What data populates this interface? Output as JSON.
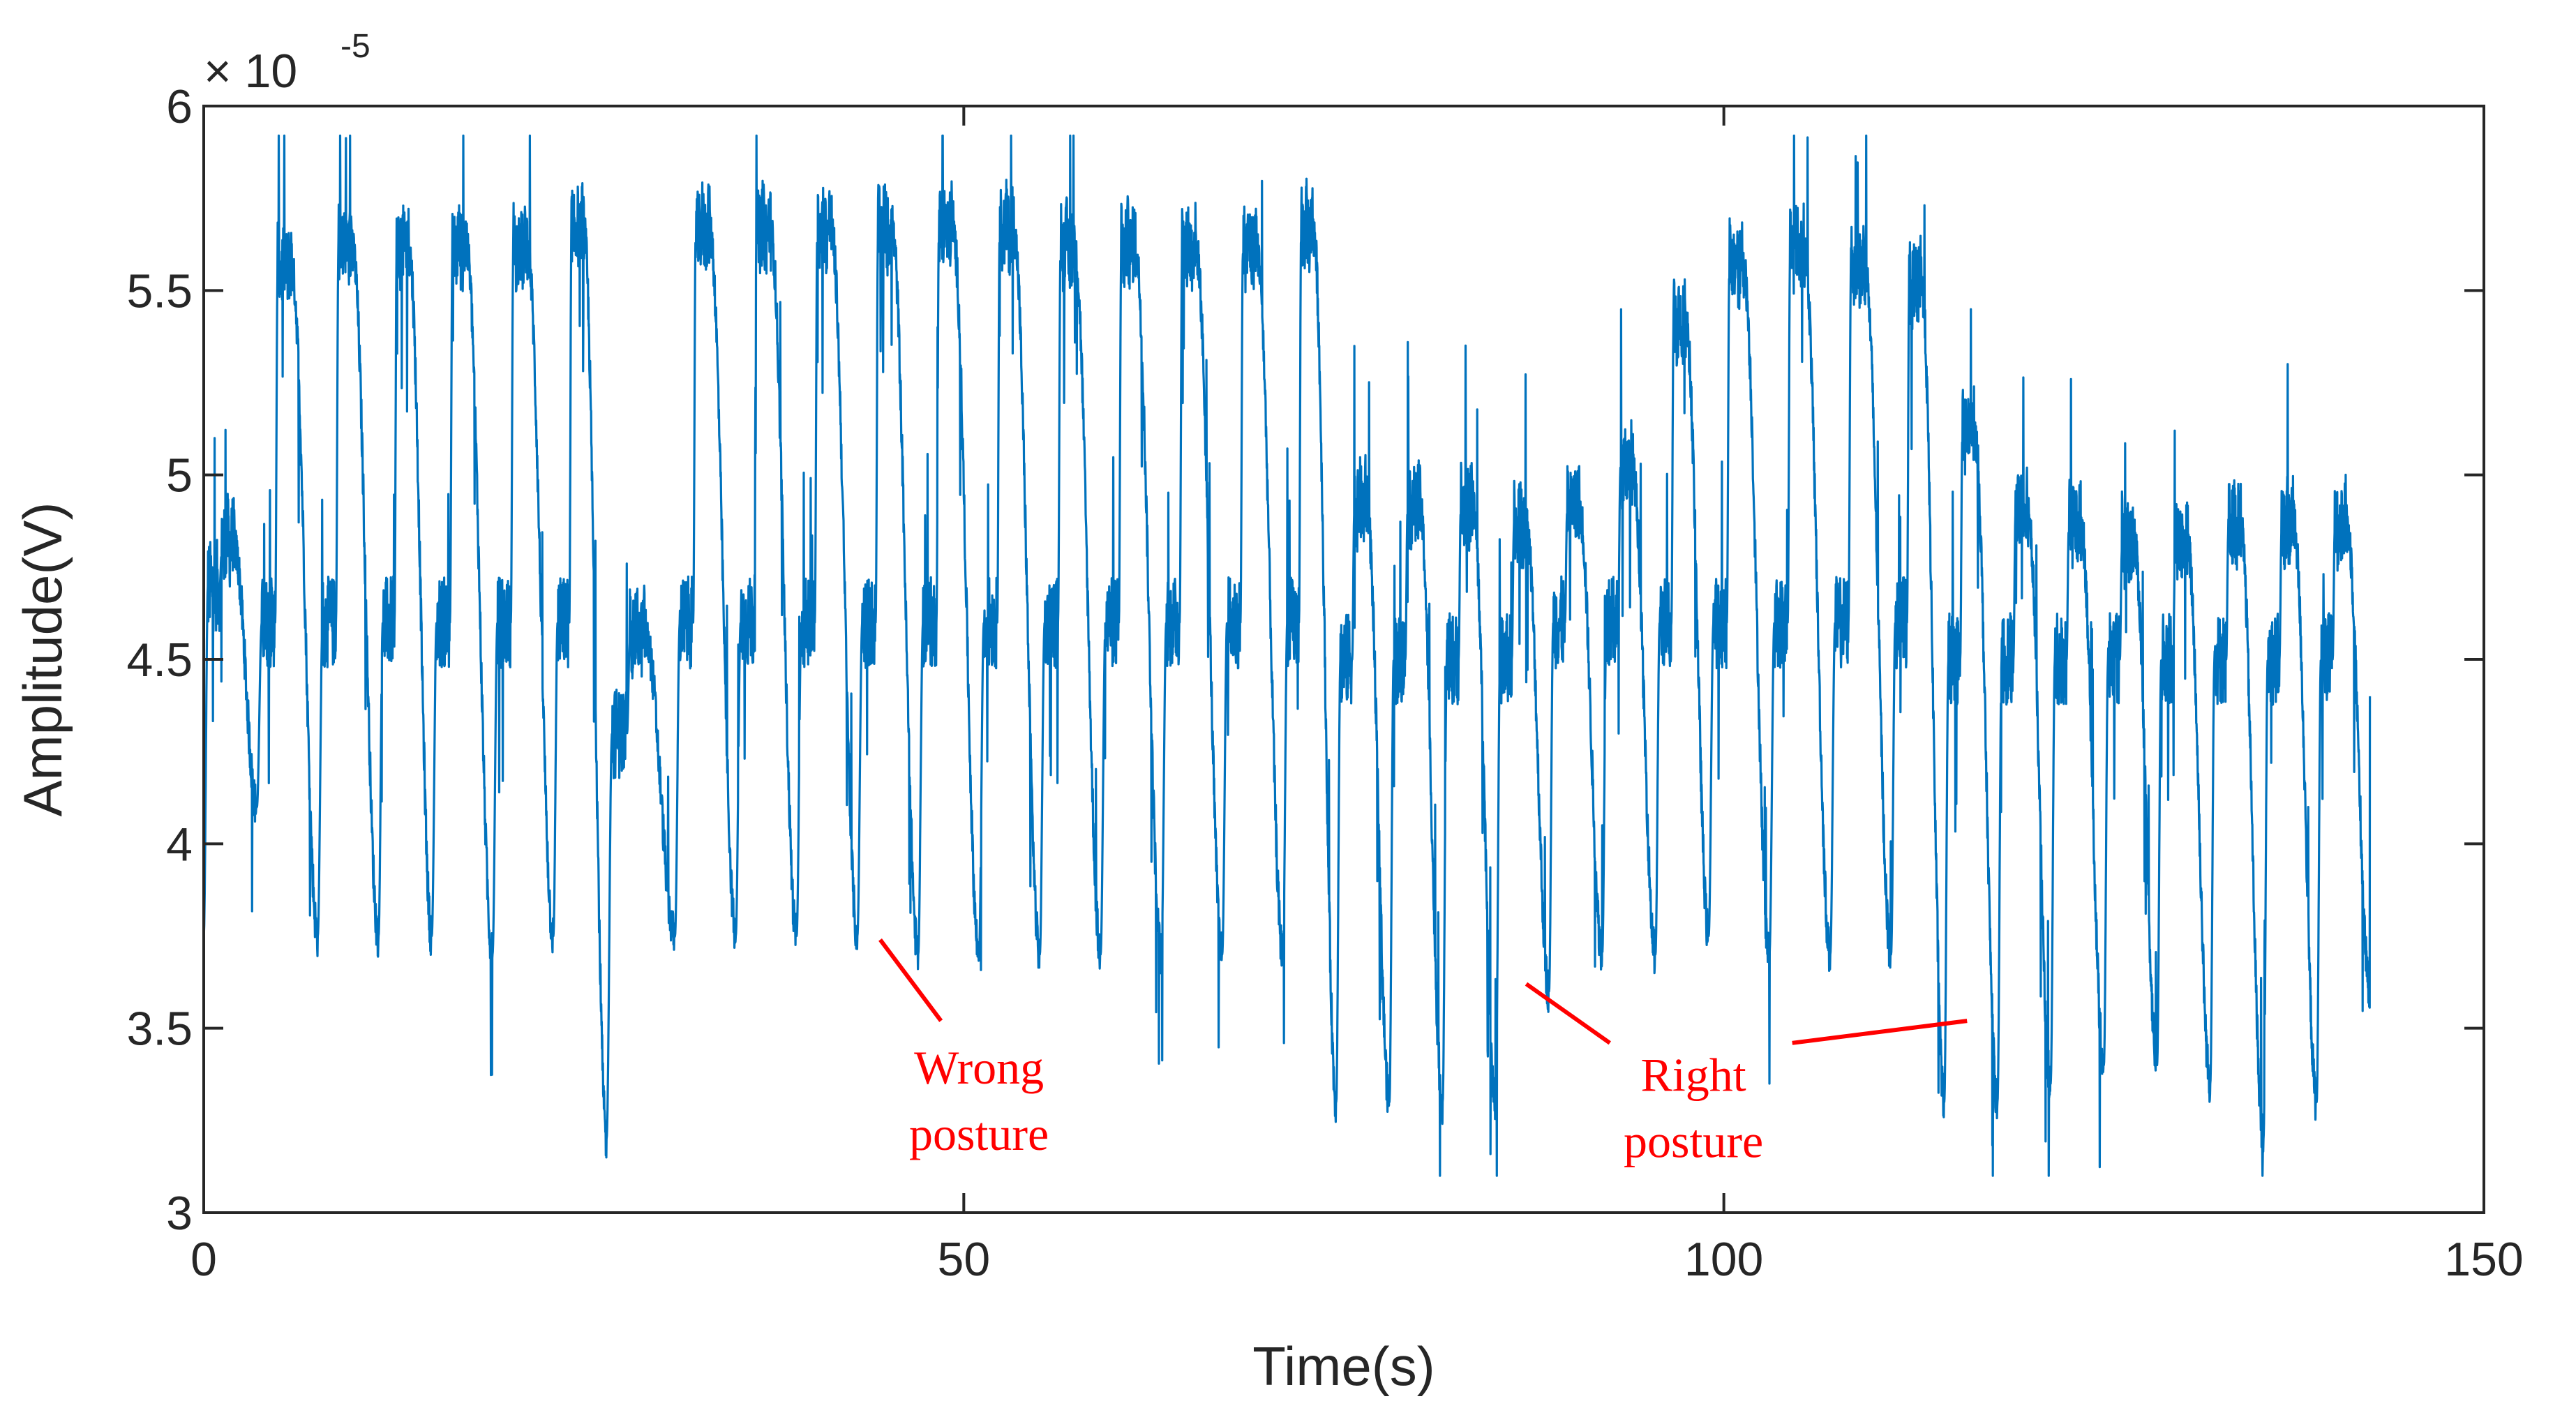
{
  "chart_data": {
    "type": "line",
    "title": "",
    "xlabel": "Time(s)",
    "ylabel": "Amplitude(V)",
    "xlim": [
      0,
      150
    ],
    "ylim": [
      3e-05,
      6e-05
    ],
    "xticks": [
      0,
      50,
      100,
      150
    ],
    "xtick_labels": [
      "0",
      "50",
      "100",
      "150"
    ],
    "yticks": [
      3e-05,
      3.5e-05,
      4e-05,
      4.5e-05,
      5e-05,
      5.5e-05,
      6e-05
    ],
    "ytick_labels": [
      "3",
      "3.5",
      "4",
      "4.5",
      "5",
      "5.5",
      "6"
    ],
    "y_multiplier": {
      "base": "× 10",
      "exponent": "-5"
    },
    "grid": false,
    "series": [
      {
        "name": "Amplitude",
        "color": "#0072BD",
        "x_range": [
          0,
          142.5
        ],
        "description": "Sampled breathing-signal amplitude; wrong-posture segment 0–71 s, right-posture segment 71–142.5 s",
        "cycles": [
          {
            "t": 0.0,
            "trough": 3.75e-05,
            "peak": 5e-05,
            "mid": 4.7e-05
          },
          {
            "t": 3.5,
            "trough": 4.1e-05,
            "peak": 5.75e-05,
            "mid": 4.6e-05
          },
          {
            "t": 7.5,
            "trough": 3.75e-05,
            "peak": 5.8e-05,
            "mid": 4.6e-05
          },
          {
            "t": 11.5,
            "trough": 3.75e-05,
            "peak": 5.8e-05,
            "mid": 4.6e-05
          },
          {
            "t": 15.0,
            "trough": 3.75e-05,
            "peak": 5.8e-05,
            "mid": 4.6e-05
          },
          {
            "t": 19.0,
            "trough": 3.7e-05,
            "peak": 5.8e-05,
            "mid": 4.6e-05
          },
          {
            "t": 23.0,
            "trough": 3.75e-05,
            "peak": 5.85e-05,
            "mid": 4.6e-05
          },
          {
            "t": 26.5,
            "trough": 3.2e-05,
            "peak": 4.75e-05,
            "mid": 4.3e-05
          },
          {
            "t": 31.0,
            "trough": 3.75e-05,
            "peak": 5.85e-05,
            "mid": 4.6e-05
          },
          {
            "t": 35.0,
            "trough": 3.75e-05,
            "peak": 5.85e-05,
            "mid": 4.6e-05
          },
          {
            "t": 39.0,
            "trough": 3.75e-05,
            "peak": 5.85e-05,
            "mid": 4.6e-05
          },
          {
            "t": 43.0,
            "trough": 3.75e-05,
            "peak": 5.85e-05,
            "mid": 4.6e-05
          },
          {
            "t": 47.0,
            "trough": 3.7e-05,
            "peak": 5.85e-05,
            "mid": 4.6e-05
          },
          {
            "t": 51.0,
            "trough": 3.7e-05,
            "peak": 5.85e-05,
            "mid": 4.6e-05
          },
          {
            "t": 55.0,
            "trough": 3.7e-05,
            "peak": 5.8e-05,
            "mid": 4.6e-05
          },
          {
            "t": 59.0,
            "trough": 3.7e-05,
            "peak": 5.8e-05,
            "mid": 4.6e-05
          },
          {
            "t": 63.0,
            "trough": 3.7e-05,
            "peak": 5.8e-05,
            "mid": 4.6e-05
          },
          {
            "t": 67.0,
            "trough": 3.7e-05,
            "peak": 5.8e-05,
            "mid": 4.6e-05
          },
          {
            "t": 71.0,
            "trough": 3.7e-05,
            "peak": 5.85e-05,
            "mid": 4.6e-05
          },
          {
            "t": 74.5,
            "trough": 3.3e-05,
            "peak": 5.1e-05,
            "mid": 4.5e-05
          },
          {
            "t": 78.0,
            "trough": 3.3e-05,
            "peak": 5.1e-05,
            "mid": 4.5e-05
          },
          {
            "t": 81.5,
            "trough": 3.3e-05,
            "peak": 5.1e-05,
            "mid": 4.5e-05
          },
          {
            "t": 85.0,
            "trough": 3.3e-05,
            "peak": 5.05e-05,
            "mid": 4.5e-05
          },
          {
            "t": 88.5,
            "trough": 3.6e-05,
            "peak": 5.1e-05,
            "mid": 4.6e-05
          },
          {
            "t": 92.0,
            "trough": 3.7e-05,
            "peak": 5.2e-05,
            "mid": 4.6e-05
          },
          {
            "t": 95.5,
            "trough": 3.7e-05,
            "peak": 5.6e-05,
            "mid": 4.6e-05
          },
          {
            "t": 99.0,
            "trough": 3.75e-05,
            "peak": 5.75e-05,
            "mid": 4.6e-05
          },
          {
            "t": 103.0,
            "trough": 3.7e-05,
            "peak": 5.8e-05,
            "mid": 4.6e-05
          },
          {
            "t": 107.0,
            "trough": 3.7e-05,
            "peak": 5.75e-05,
            "mid": 4.6e-05
          },
          {
            "t": 111.0,
            "trough": 3.7e-05,
            "peak": 5.7e-05,
            "mid": 4.6e-05
          },
          {
            "t": 114.5,
            "trough": 3.3e-05,
            "peak": 5.3e-05,
            "mid": 4.5e-05
          },
          {
            "t": 118.0,
            "trough": 3.3e-05,
            "peak": 5.1e-05,
            "mid": 4.5e-05
          },
          {
            "t": 121.5,
            "trough": 3.35e-05,
            "peak": 5.05e-05,
            "mid": 4.5e-05
          },
          {
            "t": 125.0,
            "trough": 3.4e-05,
            "peak": 5e-05,
            "mid": 4.5e-05
          },
          {
            "t": 128.5,
            "trough": 3.4e-05,
            "peak": 5e-05,
            "mid": 4.5e-05
          },
          {
            "t": 132.0,
            "trough": 3.35e-05,
            "peak": 5.05e-05,
            "mid": 4.5e-05
          },
          {
            "t": 135.5,
            "trough": 3.2e-05,
            "peak": 5.05e-05,
            "mid": 4.5e-05
          },
          {
            "t": 139.0,
            "trough": 3.3e-05,
            "peak": 5.05e-05,
            "mid": 4.5e-05
          },
          {
            "t": 142.5,
            "trough": 3.6e-05,
            "peak": 4.4e-05,
            "mid": 4.2e-05
          }
        ]
      }
    ],
    "annotations": [
      {
        "name": "wrong-posture",
        "lines": [
          "Wrong",
          "posture"
        ],
        "color": "#FF0000",
        "arrow_from": [
          48.5,
          3.52e-05
        ],
        "arrow_to": [
          44.5,
          3.74e-05
        ],
        "text_at": [
          51,
          3.35e-05
        ]
      },
      {
        "name": "right-posture",
        "lines": [
          "Right",
          "posture"
        ],
        "color": "#FF0000",
        "arrows": [
          {
            "from": [
              92.5,
              3.46e-05
            ],
            "to": [
              87.0,
              3.62e-05
            ]
          },
          {
            "from": [
              104.5,
              3.46e-05
            ],
            "to": [
              116.0,
              3.52e-05
            ]
          }
        ],
        "text_at": [
          98,
          3.33e-05
        ]
      }
    ]
  }
}
